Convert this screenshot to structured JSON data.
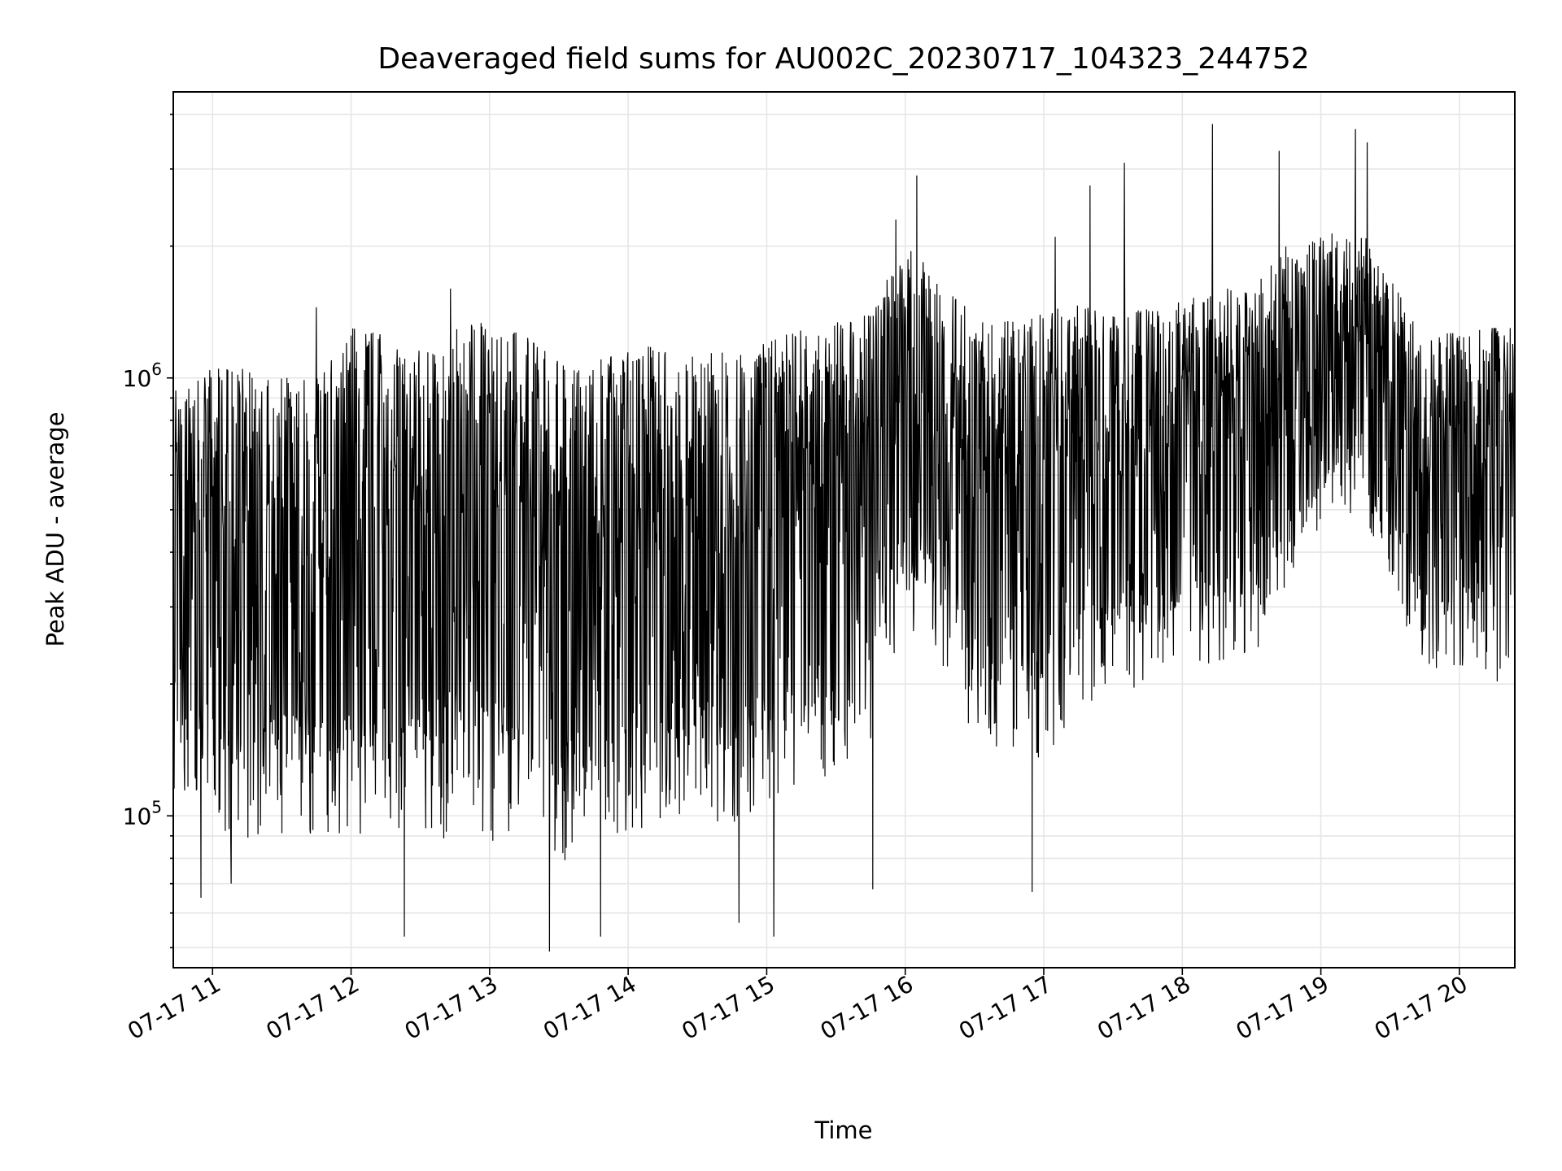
{
  "chart_data": {
    "type": "line",
    "title": "Deaveraged field sums for AU002C_20230717_104323_244752",
    "xlabel": "Time",
    "ylabel": "Peak ADU - average",
    "yscale": "log",
    "ylim": [
      45000,
      4500000
    ],
    "xlim": [
      "2023-07-17 10:43",
      "2023-07-17 20:24"
    ],
    "grid": true,
    "x_ticks": [
      {
        "value": "2023-07-17 11:00",
        "label": "07-17 11"
      },
      {
        "value": "2023-07-17 12:00",
        "label": "07-17 12"
      },
      {
        "value": "2023-07-17 13:00",
        "label": "07-17 13"
      },
      {
        "value": "2023-07-17 14:00",
        "label": "07-17 14"
      },
      {
        "value": "2023-07-17 15:00",
        "label": "07-17 15"
      },
      {
        "value": "2023-07-17 16:00",
        "label": "07-17 16"
      },
      {
        "value": "2023-07-17 17:00",
        "label": "07-17 17"
      },
      {
        "value": "2023-07-17 18:00",
        "label": "07-17 18"
      },
      {
        "value": "2023-07-17 19:00",
        "label": "07-17 19"
      },
      {
        "value": "2023-07-17 20:00",
        "label": "07-17 20"
      }
    ],
    "y_ticks": [
      {
        "value": 100000,
        "base": "10",
        "exp": "5"
      },
      {
        "value": 1000000,
        "base": "10",
        "exp": "6"
      }
    ],
    "series": [
      {
        "color": "#000000",
        "envelope": [
          {
            "t": "2023-07-17 10:45",
            "low": 90000,
            "high": 1000000
          },
          {
            "t": "2023-07-17 11:00",
            "low": 80000,
            "high": 1050000
          },
          {
            "t": "2023-07-17 11:15",
            "low": 75000,
            "high": 1050000
          },
          {
            "t": "2023-07-17 11:30",
            "low": 80000,
            "high": 1000000
          },
          {
            "t": "2023-07-17 11:45",
            "low": 80000,
            "high": 1000000
          },
          {
            "t": "2023-07-17 12:00",
            "low": 75000,
            "high": 1300000
          },
          {
            "t": "2023-07-17 12:15",
            "low": 80000,
            "high": 1250000
          },
          {
            "t": "2023-07-17 12:30",
            "low": 70000,
            "high": 1150000
          },
          {
            "t": "2023-07-17 12:45",
            "low": 80000,
            "high": 1300000
          },
          {
            "t": "2023-07-17 13:00",
            "low": 75000,
            "high": 1350000
          },
          {
            "t": "2023-07-17 13:15",
            "low": 80000,
            "high": 1250000
          },
          {
            "t": "2023-07-17 13:30",
            "low": 65000,
            "high": 1100000
          },
          {
            "t": "2023-07-17 13:45",
            "low": 75000,
            "high": 1100000
          },
          {
            "t": "2023-07-17 14:00",
            "low": 80000,
            "high": 1150000
          },
          {
            "t": "2023-07-17 14:15",
            "low": 85000,
            "high": 1200000
          },
          {
            "t": "2023-07-17 14:30",
            "low": 90000,
            "high": 1150000
          },
          {
            "t": "2023-07-17 14:45",
            "low": 80000,
            "high": 1150000
          },
          {
            "t": "2023-07-17 15:00",
            "low": 90000,
            "high": 1200000
          },
          {
            "t": "2023-07-17 15:15",
            "low": 100000,
            "high": 1300000
          },
          {
            "t": "2023-07-17 15:30",
            "low": 110000,
            "high": 1350000
          },
          {
            "t": "2023-07-17 15:45",
            "low": 130000,
            "high": 1450000
          },
          {
            "t": "2023-07-17 16:00",
            "low": 250000,
            "high": 2000000
          },
          {
            "t": "2023-07-17 16:15",
            "low": 200000,
            "high": 1700000
          },
          {
            "t": "2023-07-17 16:30",
            "low": 130000,
            "high": 1400000
          },
          {
            "t": "2023-07-17 16:45",
            "low": 120000,
            "high": 1350000
          },
          {
            "t": "2023-07-17 17:00",
            "low": 120000,
            "high": 1400000
          },
          {
            "t": "2023-07-17 17:15",
            "low": 150000,
            "high": 1500000
          },
          {
            "t": "2023-07-17 17:30",
            "low": 180000,
            "high": 1400000
          },
          {
            "t": "2023-07-17 17:45",
            "low": 170000,
            "high": 1450000
          },
          {
            "t": "2023-07-17 18:00",
            "low": 200000,
            "high": 1500000
          },
          {
            "t": "2023-07-17 18:15",
            "low": 200000,
            "high": 1600000
          },
          {
            "t": "2023-07-17 18:30",
            "low": 200000,
            "high": 1600000
          },
          {
            "t": "2023-07-17 18:45",
            "low": 300000,
            "high": 2000000
          },
          {
            "t": "2023-07-17 19:00",
            "low": 400000,
            "high": 2100000
          },
          {
            "t": "2023-07-17 19:15",
            "low": 450000,
            "high": 2300000
          },
          {
            "t": "2023-07-17 19:30",
            "low": 300000,
            "high": 1700000
          },
          {
            "t": "2023-07-17 19:45",
            "low": 180000,
            "high": 1200000
          },
          {
            "t": "2023-07-17 20:00",
            "low": 200000,
            "high": 1300000
          },
          {
            "t": "2023-07-17 20:15",
            "low": 180000,
            "high": 1300000
          },
          {
            "t": "2023-07-17 20:24",
            "low": 180000,
            "high": 1300000
          }
        ],
        "extremes": [
          {
            "t": "2023-07-17 10:55",
            "value": 65000
          },
          {
            "t": "2023-07-17 11:08",
            "value": 70000
          },
          {
            "t": "2023-07-17 12:23",
            "value": 53000
          },
          {
            "t": "2023-07-17 13:26",
            "value": 49000
          },
          {
            "t": "2023-07-17 13:48",
            "value": 53000
          },
          {
            "t": "2023-07-17 14:48",
            "value": 57000
          },
          {
            "t": "2023-07-17 15:03",
            "value": 53000
          },
          {
            "t": "2023-07-17 15:46",
            "value": 68000
          },
          {
            "t": "2023-07-17 16:55",
            "value": 67000
          },
          {
            "t": "2023-07-17 15:56",
            "value": 2300000
          },
          {
            "t": "2023-07-17 16:05",
            "value": 2900000
          },
          {
            "t": "2023-07-17 17:20",
            "value": 2750000
          },
          {
            "t": "2023-07-17 17:35",
            "value": 3100000
          },
          {
            "t": "2023-07-17 18:13",
            "value": 3800000
          },
          {
            "t": "2023-07-17 18:42",
            "value": 3300000
          },
          {
            "t": "2023-07-17 19:15",
            "value": 3700000
          },
          {
            "t": "2023-07-17 19:20",
            "value": 3450000
          },
          {
            "t": "2023-07-17 11:45",
            "value": 1450000
          },
          {
            "t": "2023-07-17 12:43",
            "value": 1600000
          },
          {
            "t": "2023-07-17 17:05",
            "value": 2100000
          }
        ]
      }
    ]
  }
}
